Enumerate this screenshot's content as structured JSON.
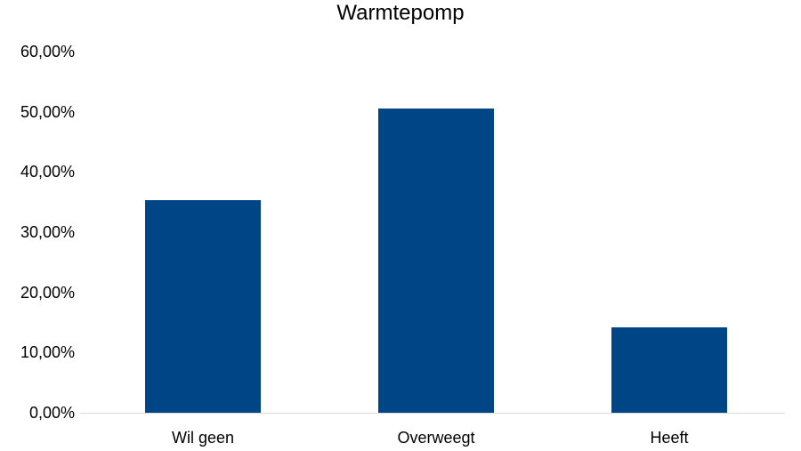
{
  "chart_data": {
    "type": "bar",
    "title": "Warmtepomp",
    "categories": [
      "Wil geen",
      "Overweegt",
      "Heeft"
    ],
    "values": [
      35.3,
      50.5,
      14.2
    ],
    "value_unit": "%",
    "xlabel": "",
    "ylabel": "",
    "ylim": [
      0,
      60
    ],
    "yticks": [
      "0,00%",
      "10,00%",
      "20,00%",
      "30,00%",
      "40,00%",
      "50,00%",
      "60,00%"
    ],
    "grid": false,
    "legend": null,
    "bar_color": "#004586"
  }
}
